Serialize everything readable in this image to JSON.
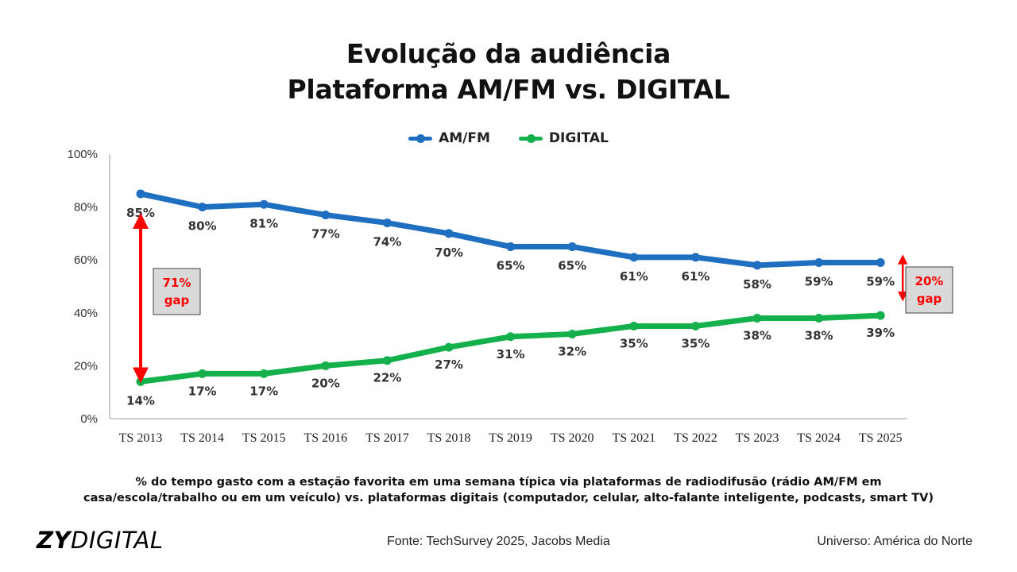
{
  "title_lines": [
    "Evolução da audiência",
    "Plataforma AM/FM vs. DIGITAL"
  ],
  "caption_lines": [
    "% do tempo gasto com a estação favorita em uma semana típica via plataformas de radiodifusão (rádio AM/FM em",
    "casa/escola/trabalho ou em um veículo) vs. plataformas digitais (computador, celular, alto-falante inteligente, podcasts, smart TV)"
  ],
  "footer": {
    "logo_bold": "ZY",
    "logo_light": "DIGITAL",
    "source": "Fonte: TechSurvey 2025, Jacobs Media",
    "universe": "Universo: América do Norte"
  },
  "chart_data": {
    "type": "line",
    "categories": [
      "TS 2013",
      "TS 2014",
      "TS 2015",
      "TS 2016",
      "TS 2017",
      "TS 2018",
      "TS 2019",
      "TS 2020",
      "TS 2021",
      "TS 2022",
      "TS 2023",
      "TS 2024",
      "TS 2025"
    ],
    "series": [
      {
        "name": "AM/FM",
        "color": "#1f6fc1",
        "values": [
          85,
          80,
          81,
          77,
          74,
          70,
          65,
          65,
          61,
          61,
          58,
          59,
          59
        ]
      },
      {
        "name": "DIGITAL",
        "color": "#13b04b",
        "values": [
          14,
          17,
          17,
          20,
          22,
          27,
          31,
          32,
          35,
          35,
          38,
          38,
          39
        ]
      }
    ],
    "ylim": [
      0,
      100
    ],
    "yticks": [
      "0%",
      "20%",
      "40%",
      "60%",
      "80%",
      "100%"
    ],
    "legend_position": "top-center",
    "grid": false,
    "annotations": [
      {
        "label_value": "71%",
        "label_text": "gap",
        "category": "TS 2013",
        "from": 14,
        "to": 85,
        "color": "#ff0000"
      },
      {
        "label_value": "20%",
        "label_text": "gap",
        "category": "TS 2025",
        "from": 39,
        "to": 59,
        "color": "#ff0000"
      }
    ]
  }
}
